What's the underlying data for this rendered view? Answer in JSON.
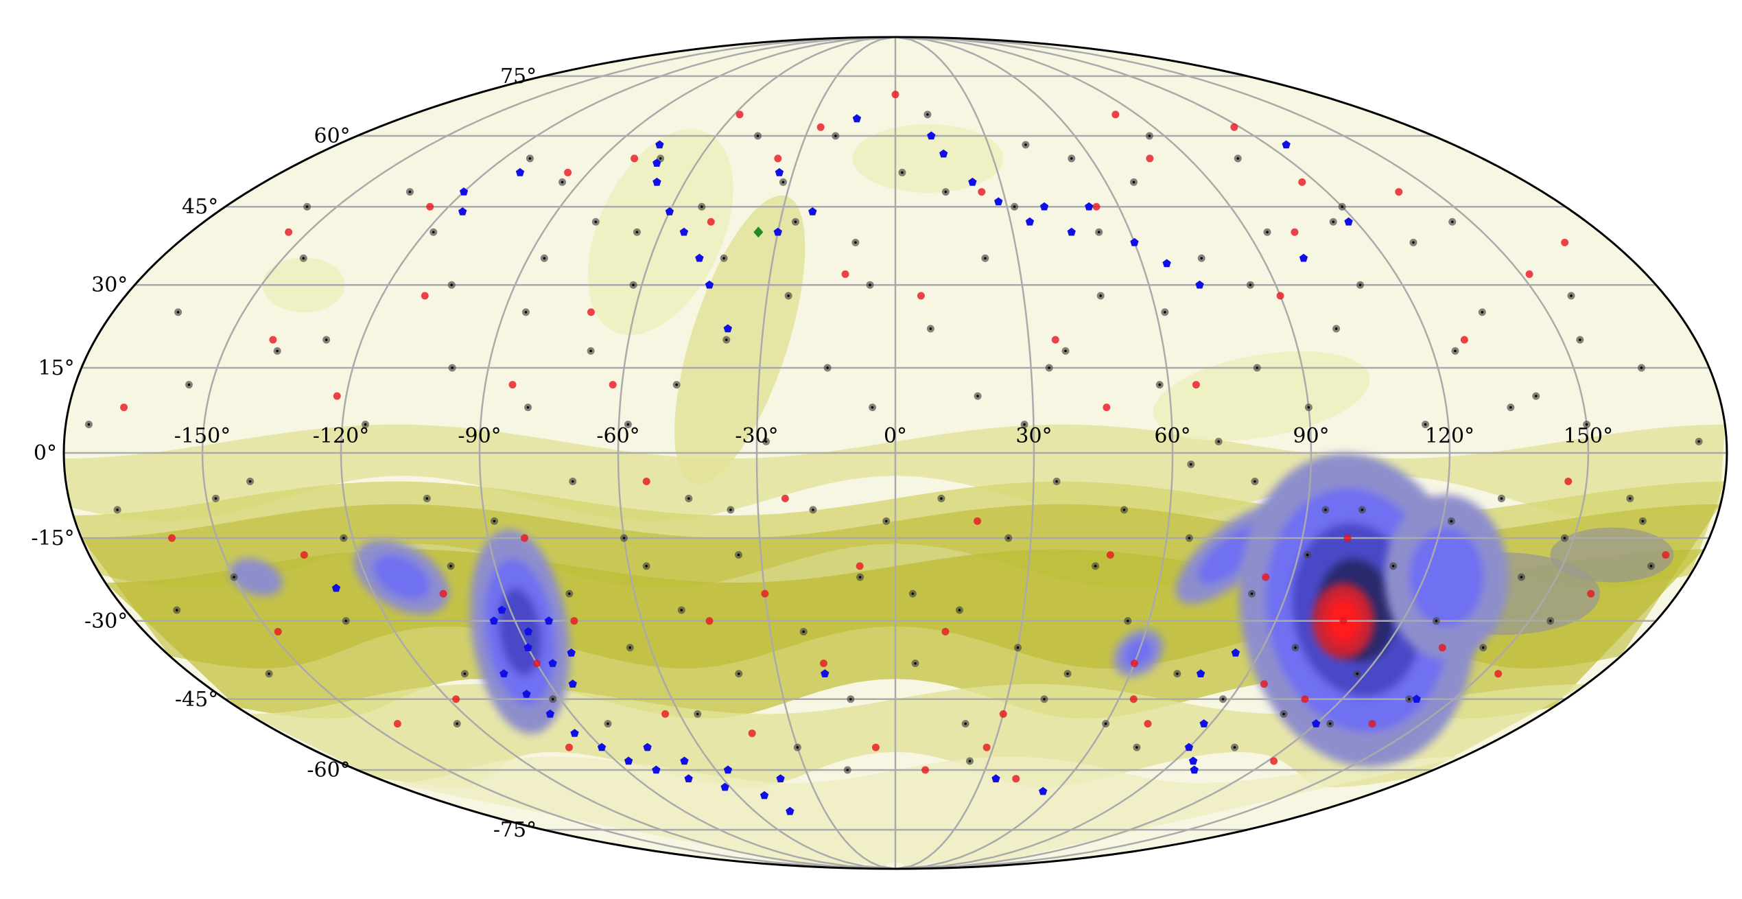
{
  "chart_data": {
    "type": "scatter",
    "projection": "mollweide",
    "title": "",
    "xlabel": "",
    "ylabel": "",
    "xlim": [
      -180,
      180
    ],
    "ylim": [
      -90,
      90
    ],
    "grid": true,
    "x_ticks": [
      -150,
      -120,
      -90,
      -60,
      -30,
      0,
      30,
      60,
      90,
      120,
      150
    ],
    "x_tick_labels": [
      "-150°",
      "-120°",
      "-90°",
      "-60°",
      "-30°",
      "0°",
      "30°",
      "60°",
      "90°",
      "120°",
      "150°"
    ],
    "y_ticks": [
      75,
      60,
      45,
      30,
      15,
      0,
      -15,
      -30,
      -45,
      -60,
      -75
    ],
    "y_tick_labels": [
      "75°",
      "60°",
      "45°",
      "30°",
      "15°",
      "0°",
      "-15°",
      "-30°",
      "-45°",
      "-60°",
      "-75°"
    ],
    "background_density": {
      "description": "filled contour map: pale cream at high latitudes, olive bands along southern latitudes, blue/violet peaks near (-90,-30) and (105,-25), red core near (105,-30)",
      "colors": [
        "#f7f6e3",
        "#eeeec0",
        "#e2e29a",
        "#d6d673",
        "#c6c64a",
        "#b8b82b",
        "#9a9a8e",
        "#8e8ecc",
        "#6f6ff2",
        "#4a4ac8",
        "#2b2b6e",
        "#cc2030",
        "#ff1a1a"
      ],
      "peaks": [
        {
          "lon": -90,
          "lat": -30,
          "level": "blue"
        },
        {
          "lon": -110,
          "lat": -22,
          "level": "blue"
        },
        {
          "lon": 105,
          "lat": -30,
          "level": "red"
        },
        {
          "lon": 75,
          "lat": -20,
          "level": "blue"
        },
        {
          "lon": 60,
          "lat": -35,
          "level": "blue"
        }
      ]
    },
    "series": [
      {
        "marker": "circle",
        "color": "#444444",
        "points": [
          [
            -170,
            -10
          ],
          [
            -165,
            25
          ],
          [
            -160,
            -40
          ],
          [
            -155,
            12
          ],
          [
            -150,
            -22
          ],
          [
            -145,
            35
          ],
          [
            -140,
            -5
          ],
          [
            -135,
            48
          ],
          [
            -130,
            -30
          ],
          [
            -128,
            20
          ],
          [
            -122,
            -15
          ],
          [
            -118,
            40
          ],
          [
            -115,
            5
          ],
          [
            -110,
            -40
          ],
          [
            -105,
            30
          ],
          [
            -102,
            -8
          ],
          [
            -98,
            15
          ],
          [
            -95,
            50
          ],
          [
            -92,
            -45
          ],
          [
            -88,
            -12
          ],
          [
            -85,
            25
          ],
          [
            -82,
            -50
          ],
          [
            -80,
            8
          ],
          [
            -78,
            42
          ],
          [
            -75,
            -25
          ],
          [
            -72,
            55
          ],
          [
            -70,
            -5
          ],
          [
            -68,
            18
          ],
          [
            -65,
            -35
          ],
          [
            -62,
            30
          ],
          [
            -60,
            -15
          ],
          [
            -58,
            5
          ],
          [
            -55,
            -48
          ],
          [
            -52,
            45
          ],
          [
            -50,
            -28
          ],
          [
            -48,
            12
          ],
          [
            -45,
            -8
          ],
          [
            -42,
            35
          ],
          [
            -40,
            -40
          ],
          [
            -38,
            20
          ],
          [
            -35,
            -18
          ],
          [
            -32,
            50
          ],
          [
            -30,
            -55
          ],
          [
            -28,
            2
          ],
          [
            -25,
            28
          ],
          [
            -22,
            -32
          ],
          [
            -20,
            60
          ],
          [
            -18,
            -10
          ],
          [
            -15,
            15
          ],
          [
            -12,
            -45
          ],
          [
            -10,
            38
          ],
          [
            -8,
            -22
          ],
          [
            -5,
            8
          ],
          [
            -2,
            -12
          ],
          [
            2,
            52
          ],
          [
            5,
            -38
          ],
          [
            8,
            22
          ],
          [
            10,
            -8
          ],
          [
            12,
            65
          ],
          [
            15,
            -28
          ],
          [
            18,
            10
          ],
          [
            20,
            -50
          ],
          [
            22,
            35
          ],
          [
            25,
            -15
          ],
          [
            28,
            5
          ],
          [
            30,
            -35
          ],
          [
            32,
            45
          ],
          [
            35,
            -5
          ],
          [
            38,
            18
          ],
          [
            40,
            -45
          ],
          [
            42,
            58
          ],
          [
            45,
            -20
          ],
          [
            48,
            28
          ],
          [
            50,
            -10
          ],
          [
            52,
            40
          ],
          [
            55,
            -30
          ],
          [
            58,
            12
          ],
          [
            60,
            -50
          ],
          [
            62,
            25
          ],
          [
            65,
            -15
          ],
          [
            68,
            50
          ],
          [
            70,
            2
          ],
          [
            72,
            -40
          ],
          [
            75,
            35
          ],
          [
            78,
            -5
          ],
          [
            80,
            15
          ],
          [
            82,
            -25
          ],
          [
            85,
            60
          ],
          [
            88,
            -45
          ],
          [
            90,
            8
          ],
          [
            92,
            -18
          ],
          [
            95,
            40
          ],
          [
            98,
            -35
          ],
          [
            100,
            22
          ],
          [
            102,
            -10
          ],
          [
            105,
            55
          ],
          [
            108,
            -48
          ],
          [
            110,
            30
          ],
          [
            112,
            -20
          ],
          [
            115,
            5
          ],
          [
            118,
            -40
          ],
          [
            120,
            45
          ],
          [
            122,
            -12
          ],
          [
            125,
            18
          ],
          [
            128,
            -30
          ],
          [
            130,
            38
          ],
          [
            132,
            -8
          ],
          [
            135,
            25
          ],
          [
            138,
            -45
          ],
          [
            140,
            10
          ],
          [
            142,
            -22
          ],
          [
            145,
            42
          ],
          [
            148,
            -15
          ],
          [
            150,
            5
          ],
          [
            155,
            -30
          ],
          [
            158,
            28
          ],
          [
            160,
            -8
          ],
          [
            165,
            15
          ],
          [
            170,
            -20
          ],
          [
            -175,
            5
          ],
          [
            -168,
            -28
          ],
          [
            -158,
            45
          ],
          [
            -148,
            -8
          ],
          [
            -138,
            18
          ],
          [
            -125,
            -50
          ],
          [
            -112,
            55
          ],
          [
            -100,
            -20
          ],
          [
            -86,
            35
          ],
          [
            -76,
            -55
          ],
          [
            -66,
            40
          ],
          [
            -56,
            -20
          ],
          [
            -46,
            60
          ],
          [
            -36,
            -10
          ],
          [
            -26,
            42
          ],
          [
            -16,
            -60
          ],
          [
            -6,
            30
          ],
          [
            4,
            -25
          ],
          [
            14,
            48
          ],
          [
            24,
            -58
          ],
          [
            34,
            15
          ],
          [
            44,
            -40
          ],
          [
            54,
            55
          ],
          [
            64,
            -2
          ],
          [
            74,
            -55
          ],
          [
            84,
            30
          ],
          [
            94,
            -10
          ],
          [
            104,
            -55
          ],
          [
            114,
            42
          ],
          [
            124,
            -50
          ],
          [
            134,
            8
          ],
          [
            144,
            -35
          ],
          [
            154,
            20
          ],
          [
            164,
            -12
          ],
          [
            174,
            2
          ]
        ]
      },
      {
        "marker": "circle",
        "color": "#e8141e",
        "points": [
          [
            -168,
            8
          ],
          [
            -155,
            40
          ],
          [
            -148,
            -32
          ],
          [
            -140,
            20
          ],
          [
            -132,
            -18
          ],
          [
            -125,
            45
          ],
          [
            -118,
            -45
          ],
          [
            -110,
            28
          ],
          [
            -104,
            -25
          ],
          [
            -96,
            52
          ],
          [
            -90,
            -38
          ],
          [
            -84,
            12
          ],
          [
            -80,
            55
          ],
          [
            -76,
            -30
          ],
          [
            -70,
            25
          ],
          [
            -64,
            -48
          ],
          [
            -58,
            65
          ],
          [
            -54,
            -5
          ],
          [
            -48,
            42
          ],
          [
            -42,
            -52
          ],
          [
            -36,
            55
          ],
          [
            -30,
            -25
          ],
          [
            -24,
            -8
          ],
          [
            -18,
            -38
          ],
          [
            -12,
            32
          ],
          [
            -6,
            -55
          ],
          [
            0,
            70
          ],
          [
            6,
            28
          ],
          [
            12,
            -32
          ],
          [
            18,
            -12
          ],
          [
            24,
            48
          ],
          [
            30,
            -48
          ],
          [
            36,
            20
          ],
          [
            42,
            -62
          ],
          [
            48,
            -18
          ],
          [
            54,
            45
          ],
          [
            60,
            -38
          ],
          [
            66,
            12
          ],
          [
            72,
            -50
          ],
          [
            78,
            55
          ],
          [
            84,
            -22
          ],
          [
            90,
            28
          ],
          [
            96,
            -42
          ],
          [
            102,
            40
          ],
          [
            106,
            -30
          ],
          [
            110,
            -45
          ],
          [
            116,
            50
          ],
          [
            122,
            -58
          ],
          [
            128,
            20
          ],
          [
            134,
            -35
          ],
          [
            140,
            48
          ],
          [
            146,
            -5
          ],
          [
            152,
            32
          ],
          [
            160,
            -25
          ],
          [
            168,
            38
          ],
          [
            -160,
            -15
          ],
          [
            -142,
            -50
          ],
          [
            -122,
            10
          ],
          [
            -100,
            -55
          ],
          [
            -82,
            -15
          ],
          [
            -62,
            12
          ],
          [
            -44,
            -30
          ],
          [
            -26,
            62
          ],
          [
            -8,
            -20
          ],
          [
            10,
            -60
          ],
          [
            28,
            -55
          ],
          [
            46,
            8
          ],
          [
            64,
            -45
          ],
          [
            82,
            65
          ],
          [
            100,
            -15
          ],
          [
            118,
            62
          ],
          [
            136,
            -50
          ],
          [
            154,
            -40
          ],
          [
            172,
            -18
          ]
        ]
      },
      {
        "marker": "pentagon",
        "color": "#1010e6",
        "points": [
          [
            -120,
            48
          ],
          [
            -115,
            44
          ],
          [
            -110,
            52
          ],
          [
            -95,
            -30
          ],
          [
            -92,
            -28
          ],
          [
            -90,
            -35
          ],
          [
            -88,
            -32
          ],
          [
            -86,
            -38
          ],
          [
            -84,
            -42
          ],
          [
            -82,
            -30
          ],
          [
            -80,
            -36
          ],
          [
            -100,
            -40
          ],
          [
            -98,
            -44
          ],
          [
            -96,
            -48
          ],
          [
            -94,
            -52
          ],
          [
            -90,
            -55
          ],
          [
            -86,
            -58
          ],
          [
            -80,
            -60
          ],
          [
            -76,
            -55
          ],
          [
            -72,
            -62
          ],
          [
            -68,
            -58
          ],
          [
            -62,
            -64
          ],
          [
            -56,
            -60
          ],
          [
            -50,
            -66
          ],
          [
            -45,
            -70
          ],
          [
            -40,
            -62
          ],
          [
            -76,
            58
          ],
          [
            -72,
            54
          ],
          [
            -68,
            50
          ],
          [
            -60,
            44
          ],
          [
            -54,
            40
          ],
          [
            -48,
            35
          ],
          [
            -44,
            30
          ],
          [
            -38,
            22
          ],
          [
            -34,
            52
          ],
          [
            -30,
            40
          ],
          [
            -22,
            44
          ],
          [
            -18,
            -40
          ],
          [
            -14,
            64
          ],
          [
            12,
            60
          ],
          [
            15,
            56
          ],
          [
            22,
            50
          ],
          [
            28,
            46
          ],
          [
            35,
            42
          ],
          [
            40,
            45
          ],
          [
            45,
            40
          ],
          [
            52,
            45
          ],
          [
            60,
            38
          ],
          [
            66,
            34
          ],
          [
            72,
            30
          ],
          [
            78,
            -40
          ],
          [
            84,
            -36
          ],
          [
            88,
            -50
          ],
          [
            90,
            -55
          ],
          [
            96,
            -58
          ],
          [
            100,
            -60
          ],
          [
            140,
            -45
          ],
          [
            120,
            -50
          ],
          [
            100,
            35
          ],
          [
            118,
            42
          ],
          [
            126,
            58
          ],
          [
            -128,
            -24
          ],
          [
            55,
            -65
          ],
          [
            35,
            -62
          ]
        ]
      },
      {
        "marker": "diamond",
        "color": "#1e8c1e",
        "points": [
          [
            -35,
            40
          ]
        ]
      }
    ]
  }
}
